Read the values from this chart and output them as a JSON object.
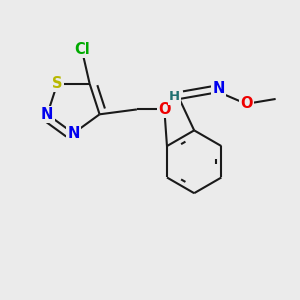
{
  "background_color": "#ebebeb",
  "atom_colors": {
    "S": "#b8b800",
    "N": "#0000ee",
    "O": "#ee0000",
    "Cl": "#00aa00",
    "C": "#000000",
    "H": "#207070"
  },
  "bond_color": "#1a1a1a",
  "bond_width": 1.5,
  "font_size_atoms": 10.5
}
